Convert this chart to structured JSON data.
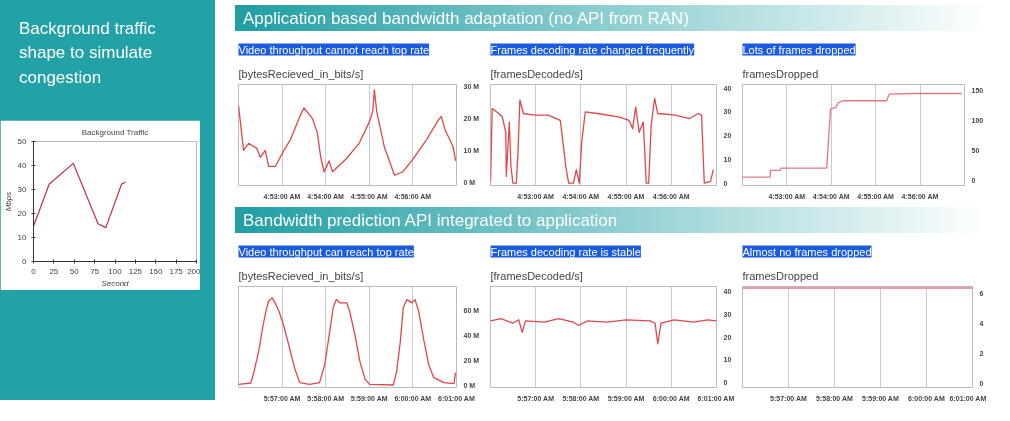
{
  "chart_data": [
    {
      "type": "line",
      "title": "Background Traffic",
      "xlabel": "Second",
      "ylabel": "Mbps",
      "annotations": [
        "Background traffic shape to simulate congestion"
      ],
      "x": [
        0,
        19.2,
        48.8,
        79.2,
        88.8,
        108,
        112.8
      ],
      "series": [
        {
          "color": "#c0304a",
          "values": [
            14.7,
            32.2,
            40.9,
            15.7,
            14.1,
            32.2,
            33.1
          ]
        }
      ],
      "xlim": [
        0,
        200
      ],
      "xticks": [
        0,
        25,
        50,
        75,
        100,
        125,
        150,
        175,
        200
      ],
      "ylim": [
        0,
        50
      ],
      "yticks": [
        0,
        10,
        20,
        30,
        40,
        50
      ],
      "grid": false
    },
    {
      "type": "line",
      "title": "Video throughput cannot reach top rate",
      "subtitle": "[bytesRecieved_in_bits/s]",
      "annotations": [
        "Application based bandwidth adaptation (no API from RAN)"
      ],
      "x": [
        4.8667,
        4.8686,
        4.8705,
        4.8737,
        4.875,
        4.8769,
        4.8782,
        4.8808,
        4.884,
        4.8865,
        4.8904,
        4.8917,
        4.8949,
        4.8968,
        4.8981,
        4.8994,
        4.9013,
        4.9026,
        4.9077,
        4.9128,
        4.9167,
        4.918,
        4.9186,
        4.9195,
        4.9224,
        4.9263,
        4.9295,
        4.9333,
        4.9385,
        4.943,
        4.9442,
        4.9455,
        4.9487,
        4.9497
      ],
      "series": [
        {
          "color": "#e0474c",
          "values": [
            23.9,
            10.0,
            12.2,
            10.6,
            7.8,
            10.0,
            5.0,
            5.0,
            10.0,
            13.3,
            21.1,
            23.3,
            20.0,
            15.6,
            7.8,
            3.3,
            6.7,
            3.3,
            7.2,
            12.2,
            18.9,
            22.2,
            28.9,
            22.2,
            11.1,
            2.2,
            3.3,
            7.2,
            13.3,
            19.4,
            20.6,
            16.7,
            11.1,
            6.7
          ]
        }
      ],
      "xlim": [
        4.866667,
        4.95
      ],
      "xticks": [
        {
          "value": 4.883333,
          "label": "4:53:00 AM"
        },
        {
          "value": 4.9,
          "label": "4:54:00 AM"
        },
        {
          "value": 4.916667,
          "label": "4:55:00 AM"
        },
        {
          "value": 4.933333,
          "label": "4:56:00 AM"
        }
      ],
      "ylim": [
        -1,
        30.6
      ],
      "yticks": [
        {
          "value": 0,
          "label": "0 M"
        },
        {
          "value": 10,
          "label": "10 M"
        },
        {
          "value": 20,
          "label": "20 M"
        },
        {
          "value": 30,
          "label": "30 M"
        }
      ],
      "grid": "x"
    },
    {
      "type": "line",
      "title": "Frames decoding rate changed frequently",
      "subtitle": "[framesDecoded/s]",
      "x": [
        4.8667,
        4.8673,
        4.8697,
        4.871,
        4.8723,
        4.8725,
        4.8736,
        4.8742,
        4.8749,
        4.8762,
        4.8768,
        4.8775,
        4.8788,
        4.8827,
        4.8879,
        4.8924,
        4.8937,
        4.8944,
        4.8955,
        4.8973,
        4.8983,
        4.8994,
        4.9003,
        4.9016,
        4.9061,
        4.9139,
        4.9178,
        4.9191,
        4.9202,
        4.9215,
        4.923,
        4.9241,
        4.925,
        4.9259,
        4.9272,
        4.9283,
        4.9348,
        4.94,
        4.9432,
        4.9445,
        4.9455,
        4.9478,
        4.9488
      ],
      "series": [
        {
          "color": "#e0474c",
          "values": [
            0.7,
            31.4,
            29.3,
            27.9,
            21.4,
            2.9,
            25.7,
            7.1,
            0,
            0,
            12.9,
            35,
            29.3,
            28.6,
            28.6,
            26.4,
            14.3,
            7.1,
            0,
            0,
            5.7,
            0,
            17.1,
            30,
            29.3,
            27.9,
            26.4,
            22.9,
            32.1,
            21.4,
            25.7,
            0,
            0,
            24.3,
            35.7,
            29.3,
            28.6,
            27.1,
            29.3,
            28.6,
            0,
            0.7,
            5.7
          ]
        }
      ],
      "xlim": [
        4.866667,
        4.95
      ],
      "xticks": [
        {
          "value": 4.883333,
          "label": "4:53:00 AM"
        },
        {
          "value": 4.9,
          "label": "4:54:00 AM"
        },
        {
          "value": 4.916667,
          "label": "4:55:00 AM"
        },
        {
          "value": 4.933333,
          "label": "4:56:00 AM"
        }
      ],
      "ylim": [
        -1,
        41.5
      ],
      "yticks": [
        0,
        10,
        20,
        30,
        40
      ],
      "grid": "x"
    },
    {
      "type": "line",
      "title": "Lots of frames dropped",
      "subtitle": "framesDropped",
      "x": [
        4.8667,
        4.877,
        4.8772,
        4.8808,
        4.8812,
        4.8983,
        4.8997,
        4.9017,
        4.9025,
        4.9042,
        4.9208,
        4.9217,
        4.93,
        4.949
      ],
      "series": [
        {
          "color": "#e07a80",
          "values": [
            6,
            6,
            17,
            17,
            21,
            21,
            119,
            122,
            129,
            133,
            133,
            144,
            145,
            145
          ]
        }
      ],
      "xlim": [
        4.866667,
        4.95
      ],
      "xticks": [
        {
          "value": 4.883333,
          "label": "4:53:00 AM"
        },
        {
          "value": 4.9,
          "label": "4:54:00 AM"
        },
        {
          "value": 4.916667,
          "label": "4:55:00 AM"
        },
        {
          "value": 4.933333,
          "label": "4:56:00 AM"
        }
      ],
      "ylim": [
        -8,
        160
      ],
      "yticks": [
        0,
        50,
        100,
        150
      ],
      "grid": "x"
    },
    {
      "type": "line",
      "title": "Video throughput can reach top rate",
      "subtitle": "[bytesRecieved_in_bits/s]",
      "annotations": [
        "Bandwidth prediction API integrated to application"
      ],
      "x": [
        5.9333,
        5.938,
        5.9393,
        5.9413,
        5.9425,
        5.9438,
        5.9448,
        5.9462,
        5.9473,
        5.949,
        5.9508,
        5.9528,
        5.9547,
        5.9567,
        5.9605,
        5.9643,
        5.9663,
        5.9682,
        5.9695,
        5.9707,
        5.972,
        5.9747,
        5.9758,
        5.9778,
        5.9797,
        5.9817,
        5.9835,
        5.9925,
        5.9938,
        5.9952,
        5.9963,
        5.9977,
        5.9997,
        6.0008,
        6.0022,
        6.004,
        6.006,
        6.008,
        6.0118,
        6.0157,
        6.0163
      ],
      "series": [
        {
          "color": "#e0474c",
          "values": [
            0.5,
            1.6,
            11.2,
            29.9,
            45.9,
            59.2,
            67.2,
            69.9,
            65.9,
            57.9,
            45.9,
            29.9,
            13.9,
            1.9,
            0.5,
            1.9,
            16.5,
            43.2,
            61.9,
            68.5,
            65.9,
            65.9,
            59.2,
            40.5,
            19.2,
            4.5,
            0.5,
            0,
            11.2,
            35.2,
            61.9,
            68.5,
            65.9,
            68.5,
            59.2,
            37.9,
            16.5,
            5.9,
            1.9,
            1.1,
            9.9
          ]
        }
      ],
      "xlim": [
        5.9333,
        6.016667
      ],
      "xticks": [
        {
          "value": 5.95,
          "label": "5:57:00 AM"
        },
        {
          "value": 5.966667,
          "label": "5:58:00 AM"
        },
        {
          "value": 5.983333,
          "label": "5:59:00 AM"
        },
        {
          "value": 6.0,
          "label": "6:00:00 AM"
        },
        {
          "value": 6.016667,
          "label": "6:01:00 AM"
        }
      ],
      "ylim": [
        -2,
        79
      ],
      "yticks": [
        {
          "value": 0,
          "label": "0 M"
        },
        {
          "value": 20,
          "label": "20 M"
        },
        {
          "value": 40,
          "label": "40 M"
        },
        {
          "value": 60,
          "label": "60 M"
        }
      ],
      "grid": "x"
    },
    {
      "type": "line",
      "title": "Frames decoding rate is stable",
      "subtitle": "[framesDecoded/s]",
      "x": [
        5.9333,
        5.9372,
        5.9415,
        5.9437,
        5.945,
        5.9462,
        5.9532,
        5.9585,
        5.9638,
        5.9657,
        5.9692,
        5.9762,
        5.9833,
        5.9922,
        5.994,
        5.995,
        5.9962,
        6.001,
        6.0082,
        6.0135,
        6.0166
      ],
      "series": [
        {
          "color": "#e0474c",
          "values": [
            27,
            28,
            26,
            27.5,
            22,
            27,
            26.5,
            28,
            26.5,
            25,
            27,
            26.5,
            27.5,
            27,
            26,
            17,
            26,
            27.5,
            26.5,
            27.5,
            27
          ]
        }
      ],
      "xlim": [
        5.9333,
        6.016667
      ],
      "xticks": [
        {
          "value": 5.95,
          "label": "5:57:00 AM"
        },
        {
          "value": 5.966667,
          "label": "5:58:00 AM"
        },
        {
          "value": 5.983333,
          "label": "5:59:00 AM"
        },
        {
          "value": 6.0,
          "label": "6:00:00 AM"
        },
        {
          "value": 6.016667,
          "label": "6:01:00 AM"
        }
      ],
      "ylim": [
        -2,
        42
      ],
      "yticks": [
        0,
        10,
        20,
        30,
        40
      ],
      "grid": "x"
    },
    {
      "type": "line",
      "title": "Almost no frames dropped",
      "subtitle": "framesDropped",
      "x": [
        5.9333,
        6.0166
      ],
      "series": [
        {
          "color": "#e07a80",
          "values": [
            6.4,
            6.4
          ]
        }
      ],
      "xlim": [
        5.9333,
        6.016667
      ],
      "xticks": [
        {
          "value": 5.95,
          "label": "5:57:00 AM"
        },
        {
          "value": 5.966667,
          "label": "5:58:00 AM"
        },
        {
          "value": 5.983333,
          "label": "5:59:00 AM"
        },
        {
          "value": 6.0,
          "label": "6:00:00 AM"
        },
        {
          "value": 6.016667,
          "label": "6:01:00 AM"
        }
      ],
      "ylim": [
        -0.3,
        6.5
      ],
      "yticks": [
        0,
        2,
        4,
        6
      ],
      "grid": "x"
    }
  ]
}
